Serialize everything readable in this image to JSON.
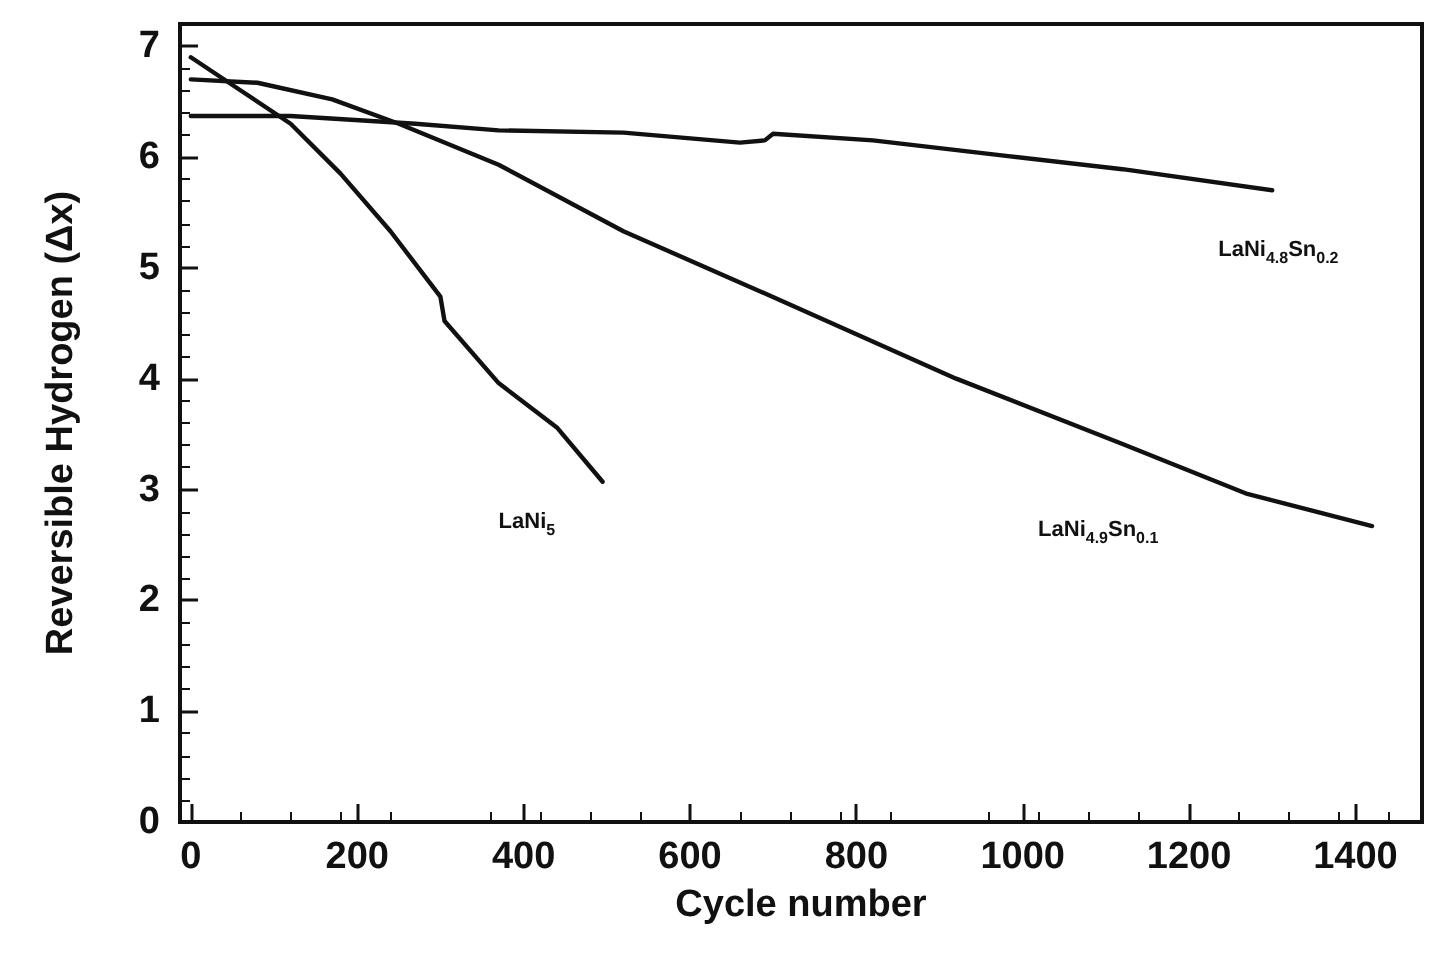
{
  "chart_data": {
    "type": "line",
    "xlabel": "Cycle number",
    "ylabel": "Reversible Hydrogen (Δx)",
    "xlim": [
      -13,
      1480
    ],
    "ylim": [
      0,
      7.2
    ],
    "xticks": [
      0,
      200,
      400,
      600,
      800,
      1000,
      1200,
      1400
    ],
    "yticks": [
      0,
      1,
      2,
      3,
      4,
      5,
      6,
      7
    ],
    "grid": false,
    "marker": "none",
    "line_style": "solid",
    "series": [
      {
        "name": "LaNi$_{5}$",
        "color": "#111111",
        "x": [
          0,
          60,
          120,
          180,
          240,
          300,
          305,
          370,
          440,
          495
        ],
        "values": [
          6.9,
          6.6,
          6.3,
          5.85,
          5.33,
          4.74,
          4.52,
          3.96,
          3.56,
          3.07
        ]
      },
      {
        "name": "LaNi$_{4.9}$Sn$_{0.1}$",
        "color": "#111111",
        "x": [
          0,
          80,
          170,
          250,
          370,
          520,
          720,
          920,
          1120,
          1270,
          1420
        ],
        "values": [
          6.7,
          6.67,
          6.52,
          6.3,
          5.93,
          5.33,
          4.67,
          4.0,
          3.41,
          2.96,
          2.67
        ]
      },
      {
        "name": "LaNi$_{4.8}$Sn$_{0.2}$",
        "color": "#111111",
        "x": [
          0,
          120,
          270,
          370,
          520,
          660,
          690,
          700,
          820,
          980,
          1120,
          1300
        ],
        "values": [
          6.37,
          6.37,
          6.3,
          6.24,
          6.22,
          6.13,
          6.15,
          6.21,
          6.15,
          6.01,
          5.89,
          5.7
        ]
      }
    ]
  }
}
